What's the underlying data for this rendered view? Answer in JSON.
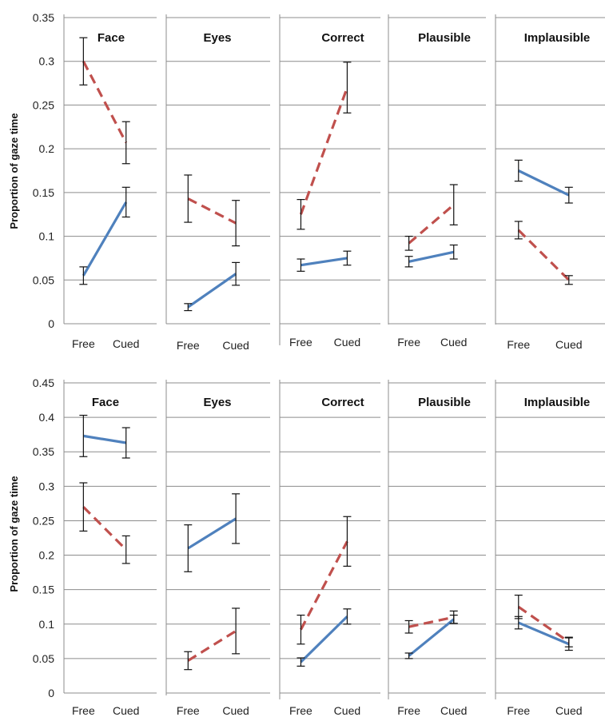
{
  "colors": {
    "blue_series": "#4f81bd",
    "red_series": "#c0504d",
    "grid": "#8c8c8c",
    "error_bar": "#111111"
  },
  "chart_data": [
    {
      "type": "line",
      "ylabel": "Proportion of gaze time",
      "ylim": [
        0,
        0.35
      ],
      "yticks": [
        "0",
        "0.05",
        "0.1",
        "0.15",
        "0.2",
        "0.25",
        "0.3",
        "0.35"
      ],
      "categories": [
        "Free",
        "Cued"
      ],
      "grid": true,
      "panels": [
        {
          "title": "Face",
          "series": [
            {
              "style": "solid-blue",
              "values": [
                0.055,
                0.139
              ],
              "err": [
                0.01,
                0.017
              ]
            },
            {
              "style": "dashed-red",
              "values": [
                0.3,
                0.207
              ],
              "err": [
                0.027,
                0.024
              ]
            }
          ]
        },
        {
          "title": "Eyes",
          "series": [
            {
              "style": "solid-blue",
              "values": [
                0.019,
                0.057
              ],
              "err": [
                0.004,
                0.013
              ]
            },
            {
              "style": "dashed-red",
              "values": [
                0.143,
                0.115
              ],
              "err": [
                0.027,
                0.026
              ]
            }
          ]
        },
        {
          "title": "Correct",
          "series": [
            {
              "style": "solid-blue",
              "values": [
                0.067,
                0.075
              ],
              "err": [
                0.007,
                0.008
              ]
            },
            {
              "style": "dashed-red",
              "values": [
                0.125,
                0.27
              ],
              "err": [
                0.017,
                0.029
              ]
            }
          ]
        },
        {
          "title": "Plausible",
          "series": [
            {
              "style": "solid-blue",
              "values": [
                0.071,
                0.082
              ],
              "err": [
                0.006,
                0.008
              ]
            },
            {
              "style": "dashed-red",
              "values": [
                0.092,
                0.136
              ],
              "err": [
                0.008,
                0.023
              ]
            }
          ]
        },
        {
          "title": "Implausible",
          "series": [
            {
              "style": "solid-blue",
              "values": [
                0.175,
                0.147
              ],
              "err": [
                0.012,
                0.009
              ]
            },
            {
              "style": "dashed-red",
              "values": [
                0.107,
                0.05
              ],
              "err": [
                0.01,
                0.005
              ]
            }
          ]
        }
      ]
    },
    {
      "type": "line",
      "ylabel": "Proportion of gaze time",
      "ylim": [
        0,
        0.45
      ],
      "yticks": [
        "0",
        "0.05",
        "0.1",
        "0.15",
        "0.2",
        "0.25",
        "0.3",
        "0.35",
        "0.4",
        "0.45"
      ],
      "categories": [
        "Free",
        "Cued"
      ],
      "grid": true,
      "panels": [
        {
          "title": "Face",
          "series": [
            {
              "style": "solid-blue",
              "values": [
                0.373,
                0.363
              ],
              "err": [
                0.03,
                0.022
              ]
            },
            {
              "style": "dashed-red",
              "values": [
                0.27,
                0.208
              ],
              "err": [
                0.035,
                0.02
              ]
            }
          ]
        },
        {
          "title": "Eyes",
          "series": [
            {
              "style": "solid-blue",
              "values": [
                0.21,
                0.253
              ],
              "err": [
                0.034,
                0.036
              ]
            },
            {
              "style": "dashed-red",
              "values": [
                0.047,
                0.09
              ],
              "err": [
                0.013,
                0.033
              ]
            }
          ]
        },
        {
          "title": "Correct",
          "series": [
            {
              "style": "solid-blue",
              "values": [
                0.045,
                0.111
              ],
              "err": [
                0.006,
                0.011
              ]
            },
            {
              "style": "dashed-red",
              "values": [
                0.092,
                0.22
              ],
              "err": [
                0.021,
                0.036
              ]
            }
          ]
        },
        {
          "title": "Plausible",
          "series": [
            {
              "style": "solid-blue",
              "values": [
                0.054,
                0.107
              ],
              "err": [
                0.004,
                0.006
              ]
            },
            {
              "style": "dashed-red",
              "values": [
                0.096,
                0.11
              ],
              "err": [
                0.009,
                0.009
              ]
            }
          ]
        },
        {
          "title": "Implausible",
          "series": [
            {
              "style": "solid-blue",
              "values": [
                0.102,
                0.071
              ],
              "err": [
                0.009,
                0.009
              ]
            },
            {
              "style": "dashed-red",
              "values": [
                0.125,
                0.074
              ],
              "err": [
                0.017,
                0.007
              ]
            }
          ]
        }
      ]
    }
  ]
}
